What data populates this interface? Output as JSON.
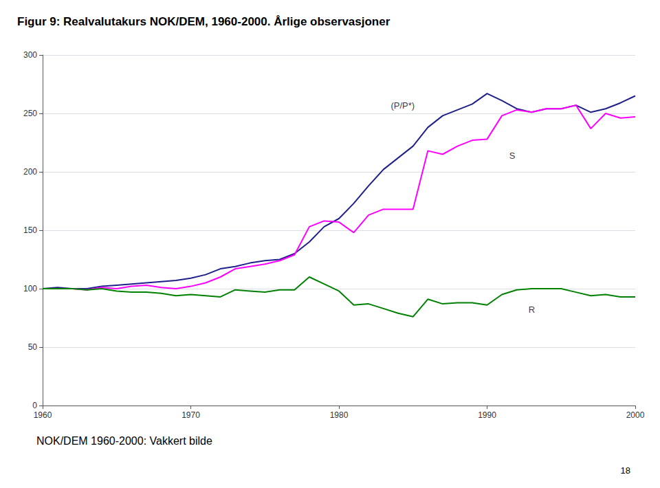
{
  "chart_data": {
    "type": "line",
    "title": "Figur 9: Realvalutakurs NOK/DEM, 1960-2000. Årlige observasjoner",
    "subtitle": "NOK/DEM 1960-2000: Vakkert bilde",
    "page_number": "18",
    "x": [
      1960,
      1961,
      1962,
      1963,
      1964,
      1965,
      1966,
      1967,
      1968,
      1969,
      1970,
      1971,
      1972,
      1973,
      1974,
      1975,
      1976,
      1977,
      1978,
      1979,
      1980,
      1981,
      1982,
      1983,
      1984,
      1985,
      1986,
      1987,
      1988,
      1989,
      1990,
      1991,
      1992,
      1993,
      1994,
      1995,
      1996,
      1997,
      1998,
      1999,
      2000
    ],
    "series": [
      {
        "color": "#1F1F8B",
        "values": [
          100,
          101,
          100,
          100,
          102,
          103,
          104,
          105,
          106,
          107,
          109,
          112,
          117,
          119,
          122,
          124,
          125,
          130,
          140,
          153,
          160,
          173,
          188,
          202,
          212,
          222,
          238,
          248,
          253,
          258,
          267,
          261,
          254,
          251,
          254,
          254,
          257,
          251,
          254,
          259,
          265
        ]
      },
      {
        "color": "#FF00FF",
        "values": [
          100,
          100,
          100,
          99,
          101,
          100,
          102,
          103,
          101,
          100,
          102,
          105,
          110,
          117,
          119,
          121,
          124,
          129,
          153,
          158,
          157,
          148,
          163,
          168,
          168,
          168,
          218,
          215,
          222,
          227,
          228,
          248,
          253,
          251,
          254,
          254,
          257,
          237,
          250,
          246,
          247
        ]
      },
      {
        "color": "#008000",
        "values": [
          100,
          100,
          100,
          99,
          100,
          98,
          97,
          97,
          96,
          94,
          95,
          94,
          93,
          99,
          98,
          97,
          99,
          99,
          110,
          104,
          98,
          86,
          87,
          83,
          79,
          76,
          91,
          87,
          88,
          88,
          86,
          95,
          99,
          100,
          100,
          100,
          97,
          94,
          95,
          93,
          93
        ]
      }
    ],
    "annotations": [
      {
        "text": "(P/P*)",
        "x": 1983.5,
        "y": 253
      },
      {
        "text": "S",
        "x": 1991.5,
        "y": 210
      },
      {
        "text": "R",
        "x": 1992.8,
        "y": 78
      }
    ],
    "xlim": [
      1960,
      2000
    ],
    "xticks": [
      1960,
      1970,
      1980,
      1990,
      2000
    ],
    "ylim": [
      0,
      300
    ],
    "yticks": [
      0,
      50,
      100,
      150,
      200,
      250,
      300
    ],
    "grid": "y"
  }
}
